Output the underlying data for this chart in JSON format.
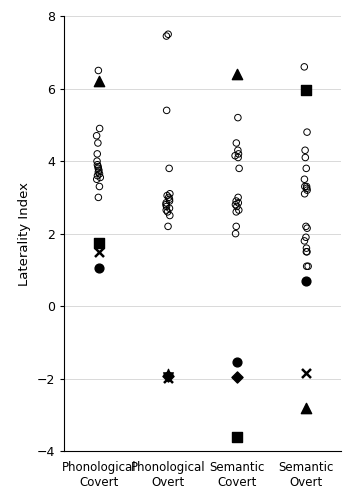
{
  "conditions": [
    "Phonological\nCovert",
    "Phonological\nOvert",
    "Semantic\nCovert",
    "Semantic\nOvert"
  ],
  "x_positions": [
    1,
    2,
    3,
    4
  ],
  "ylim": [
    -4,
    8
  ],
  "yticks": [
    -4,
    -2,
    0,
    2,
    4,
    6,
    8
  ],
  "ylabel": "Laterality Index",
  "background_color": "#ffffff",
  "condition_keys": [
    "Phonological Covert",
    "Phonological Overt",
    "Semantic Covert",
    "Semantic Overt"
  ],
  "typical_circles": {
    "Phonological Covert": [
      6.5,
      4.9,
      4.7,
      4.5,
      4.2,
      4.0,
      3.9,
      3.85,
      3.8,
      3.75,
      3.7,
      3.65,
      3.6,
      3.55,
      3.5,
      3.3,
      3.0
    ],
    "Phonological Overt": [
      7.5,
      7.45,
      5.4,
      3.8,
      3.1,
      3.05,
      3.0,
      2.95,
      2.9,
      2.85,
      2.8,
      2.75,
      2.7,
      2.65,
      2.6,
      2.5,
      2.2
    ],
    "Semantic Covert": [
      5.2,
      4.5,
      4.3,
      4.2,
      4.15,
      4.1,
      3.8,
      3.0,
      2.9,
      2.85,
      2.8,
      2.75,
      2.65,
      2.6,
      2.2,
      2.0
    ],
    "Semantic Overt": [
      6.6,
      4.8,
      4.3,
      4.1,
      3.8,
      3.5,
      3.3,
      3.3,
      3.25,
      3.2,
      3.1,
      2.2,
      2.15,
      1.9,
      1.8,
      1.6,
      1.5,
      1.5,
      1.1,
      1.1
    ]
  },
  "special_points": [
    {
      "marker": "^",
      "fc": "black",
      "ec": "black",
      "s": 55,
      "lw": 1.0,
      "points": {
        "Phonological Covert": 6.2,
        "Phonological Overt": null,
        "Semantic Covert": 6.4,
        "Semantic Overt": -2.8
      }
    },
    {
      "marker": "o",
      "fc": "black",
      "ec": "black",
      "s": 40,
      "lw": 1.0,
      "points": {
        "Phonological Covert": 1.05,
        "Phonological Overt": null,
        "Semantic Covert": -1.55,
        "Semantic Overt": 0.7
      }
    },
    {
      "marker": "s",
      "fc": "black",
      "ec": "black",
      "s": 42,
      "lw": 1.0,
      "points": {
        "Phonological Covert": 1.75,
        "Phonological Overt": null,
        "Semantic Covert": -3.6,
        "Semantic Overt": 5.95
      }
    },
    {
      "marker": "D",
      "fc": "black",
      "ec": "black",
      "s": 32,
      "lw": 1.0,
      "points": {
        "Phonological Covert": null,
        "Phonological Overt": -1.93,
        "Semantic Covert": -1.95,
        "Semantic Overt": null
      }
    },
    {
      "marker": "x",
      "fc": "black",
      "ec": "black",
      "s": 42,
      "lw": 1.8,
      "points": {
        "Phonological Covert": 1.5,
        "Phonological Overt": -1.98,
        "Semantic Covert": null,
        "Semantic Overt": -1.85
      }
    },
    {
      "marker": "*",
      "fc": "black",
      "ec": "black",
      "s": 55,
      "lw": 1.0,
      "points": {
        "Phonological Covert": null,
        "Phonological Overt": -1.88,
        "Semantic Covert": null,
        "Semantic Overt": null
      }
    }
  ]
}
